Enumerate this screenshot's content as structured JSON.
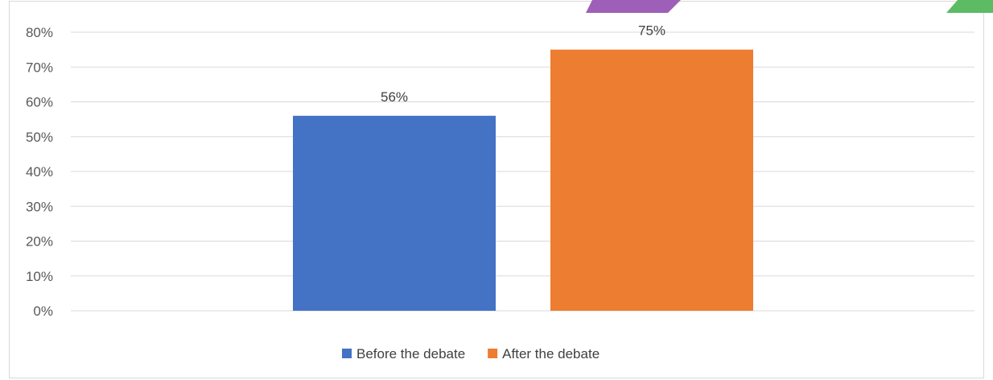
{
  "chart_data": {
    "type": "bar",
    "title": "",
    "xlabel": "",
    "ylabel": "",
    "ylim": [
      0,
      80
    ],
    "yticks": [
      0,
      10,
      20,
      30,
      40,
      50,
      60,
      70,
      80
    ],
    "ytick_suffix": "%",
    "grid": true,
    "legend_position": "bottom",
    "series": [
      {
        "name": "Before the debate",
        "values": [
          56
        ],
        "data_labels": [
          "56%"
        ],
        "color": "#4472C4"
      },
      {
        "name": "After the debate",
        "values": [
          75
        ],
        "data_labels": [
          "75%"
        ],
        "color": "#ED7D31"
      }
    ]
  },
  "decorations": {
    "corner_tab_colors": [
      "#9E5FB8",
      "#5DBB63"
    ]
  }
}
